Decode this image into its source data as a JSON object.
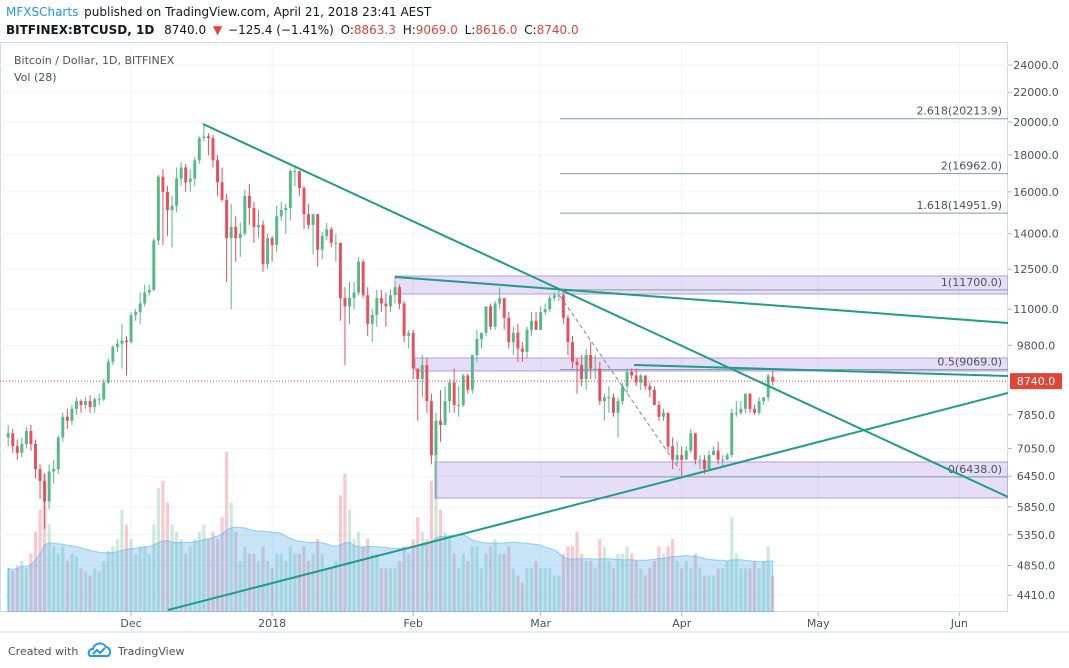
{
  "header": {
    "author": "MFXSCharts",
    "published": "published on TradingView.com, April 21, 2018 23:41 AEST",
    "symbol": "BITFINEX:BTCUSD, 1D",
    "last": "8740.0",
    "arrow": "▼",
    "change": "−125.4 (−1.41%)",
    "ohlc": [
      {
        "key": "O:",
        "value": "8863.3"
      },
      {
        "key": "H:",
        "value": "9069.0"
      },
      {
        "key": "L:",
        "value": "8616.0"
      },
      {
        "key": "C:",
        "value": "8740.0"
      }
    ]
  },
  "footer": {
    "created": "Created with",
    "brand": "TradingView"
  },
  "chart_data": {
    "type": "candlestick",
    "title": "Bitcoin / Dollar, 1D, BITFINEX",
    "volume_label": "Vol (28)",
    "volume_ma_period": 28,
    "log": true,
    "grid": true,
    "colors": {
      "up": "#53b987",
      "down": "#eb4d5c",
      "volume_ma": "#5fb3ea",
      "price_line": "#e0453a",
      "fib": "#7f9ea6"
    },
    "xlim": [
      -1.8,
      219.7
    ],
    "xticks": [
      {
        "value": 27,
        "label": "Dec"
      },
      {
        "value": 58,
        "label": "2018"
      },
      {
        "value": 89,
        "label": "Feb"
      },
      {
        "value": 117,
        "label": "Mar"
      },
      {
        "value": 148,
        "label": "Apr"
      },
      {
        "value": 178,
        "label": "May"
      },
      {
        "value": 209,
        "label": "Jun"
      }
    ],
    "ylim": [
      4180,
      25830
    ],
    "yticks": [
      {
        "value": 24000,
        "label": "24000.0"
      },
      {
        "value": 22000,
        "label": "22000.0"
      },
      {
        "value": 20000,
        "label": "20000.0"
      },
      {
        "value": 18000,
        "label": "18000.0"
      },
      {
        "value": 16000,
        "label": "16000.0"
      },
      {
        "value": 14000,
        "label": "14000.0"
      },
      {
        "value": 12500,
        "label": "12500.0"
      },
      {
        "value": 11000,
        "label": "11000.0"
      },
      {
        "value": 9800,
        "label": "9800.0"
      },
      {
        "value": 7850,
        "label": "7850.0"
      },
      {
        "value": 7050,
        "label": "7050.0"
      },
      {
        "value": 6450,
        "label": "6450.0"
      },
      {
        "value": 5850,
        "label": "5850.0"
      },
      {
        "value": 5350,
        "label": "5350.0"
      },
      {
        "value": 4850,
        "label": "4850.0"
      },
      {
        "value": 4410,
        "label": "4410.0"
      }
    ],
    "fib_levels": [
      {
        "value": 20213.9,
        "label": "2.618(20213.9)"
      },
      {
        "value": 16962,
        "label": "2(16962.0)"
      },
      {
        "value": 14951.9,
        "label": "1.618(14951.9)"
      },
      {
        "value": 11700,
        "label": "1(11700.0)"
      },
      {
        "value": 9069,
        "label": "0.5(9069.0)"
      },
      {
        "value": 6438,
        "label": "0(6438.0)"
      }
    ],
    "open": [
      7300,
      7400,
      7100,
      6950,
      7150,
      7450,
      7150,
      6600,
      6350,
      5950,
      6550,
      6600,
      7300,
      7800,
      7700,
      8000,
      8200,
      8100,
      8200,
      8050,
      8250,
      8250,
      8700,
      9300,
      9750,
      9850,
      9950,
      9900,
      10800,
      10900,
      11200,
      11600,
      11700,
      13700,
      16800,
      16000,
      15100,
      15300,
      16700,
      17300,
      16500,
      16700,
      17700,
      19000,
      19100,
      19000,
      17700,
      16500,
      15600,
      13800,
      14300,
      13800,
      14000,
      15800,
      15200,
      14300,
      14400,
      12700,
      13800,
      13500,
      14800,
      15100,
      15200,
      17100,
      17100,
      16200,
      14900,
      14400,
      14900,
      13300,
      13900,
      14200,
      13600,
      13600,
      11400,
      11100,
      11400,
      11600,
      12800,
      11500,
      10500,
      10800,
      11400,
      11200,
      11100,
      11500,
      11800,
      11200,
      10100,
      10200,
      9100,
      8800,
      9200,
      8200,
      6900,
      7700,
      7600,
      8200,
      8700,
      8100,
      8100,
      8900,
      8500,
      9500,
      10000,
      10200,
      11100,
      10400,
      11200,
      11400,
      10700,
      9900,
      10200,
      9700,
      9600,
      10300,
      10600,
      10300,
      10900,
      11000,
      11400,
      11500,
      11500,
      10700,
      9900,
      9300,
      9200,
      8800,
      9500,
      9100,
      9100,
      8200,
      8300,
      8300,
      7900,
      8200,
      8600,
      9000,
      8900,
      8700,
      8900,
      8600,
      8500,
      8100,
      7800,
      7900,
      7100,
      6800,
      6900,
      6800,
      7000,
      7400,
      6800,
      6800,
      6600,
      6900,
      7000,
      6800,
      6800,
      6900,
      7900,
      7900,
      8000,
      8400,
      8000,
      7900,
      8200,
      8300,
      8863.3
    ],
    "high": [
      7600,
      7500,
      7250,
      7300,
      7550,
      7600,
      7250,
      6700,
      6500,
      6700,
      6800,
      7350,
      7900,
      8000,
      8100,
      8300,
      8250,
      8300,
      8350,
      8300,
      8400,
      8800,
      9400,
      9800,
      10000,
      10500,
      10100,
      10900,
      11000,
      11600,
      11900,
      11900,
      13800,
      16900,
      17200,
      16300,
      15800,
      17300,
      17600,
      17500,
      17200,
      17900,
      19100,
      19800,
      19300,
      19200,
      18000,
      17300,
      15900,
      15400,
      14800,
      14500,
      16100,
      16400,
      15500,
      15100,
      14600,
      14000,
      13900,
      15300,
      15500,
      15400,
      17200,
      17300,
      17100,
      16300,
      15400,
      14900,
      14900,
      14100,
      14500,
      14300,
      14000,
      13600,
      11800,
      12000,
      12000,
      13000,
      12900,
      11800,
      11000,
      11700,
      11700,
      11600,
      11700,
      12000,
      11900,
      11300,
      10300,
      10300,
      9100,
      9500,
      9400,
      8400,
      7900,
      8500,
      8600,
      8800,
      9100,
      8600,
      8950,
      8950,
      9500,
      10300,
      10200,
      11100,
      11200,
      11300,
      11800,
      11400,
      10900,
      10400,
      10500,
      9900,
      10400,
      10900,
      10900,
      11100,
      11200,
      11500,
      11600,
      11700,
      11600,
      10800,
      10100,
      9400,
      9500,
      9700,
      9900,
      9500,
      9300,
      8400,
      8600,
      8400,
      8300,
      8700,
      9100,
      9100,
      9100,
      8950,
      8900,
      8700,
      8600,
      8200,
      8000,
      7900,
      7300,
      7200,
      7100,
      7100,
      7500,
      7400,
      6900,
      6900,
      7000,
      7100,
      7200,
      6900,
      6950,
      8000,
      8200,
      8200,
      8400,
      8400,
      8100,
      8300,
      8300,
      8950,
      9069
    ],
    "low": [
      7100,
      6950,
      6800,
      6850,
      7050,
      7000,
      6400,
      6000,
      5450,
      5800,
      6300,
      6500,
      7200,
      7500,
      7600,
      7850,
      7900,
      8000,
      7900,
      7900,
      8100,
      8200,
      8650,
      9200,
      9600,
      9100,
      8900,
      9850,
      10600,
      10500,
      11100,
      11500,
      11650,
      13500,
      13500,
      13900,
      13400,
      15000,
      16300,
      16000,
      16000,
      16300,
      17500,
      18800,
      18000,
      17300,
      15800,
      15500,
      12000,
      11000,
      12800,
      13000,
      13900,
      14400,
      13600,
      13800,
      12400,
      12500,
      12800,
      13200,
      14600,
      14000,
      14600,
      16300,
      15800,
      14200,
      14200,
      13100,
      12600,
      12900,
      13700,
      13400,
      12800,
      10600,
      9200,
      10500,
      11000,
      11500,
      11400,
      10100,
      9900,
      10400,
      10900,
      10400,
      10900,
      11200,
      11000,
      9900,
      9700,
      8800,
      7700,
      8300,
      7900,
      6700,
      6000,
      7200,
      7600,
      7900,
      7900,
      7800,
      8050,
      8400,
      8400,
      9300,
      9700,
      10100,
      10300,
      10300,
      11000,
      10300,
      9700,
      9500,
      9300,
      9300,
      9400,
      10100,
      10300,
      10300,
      10800,
      10900,
      11300,
      11300,
      10500,
      9500,
      9100,
      8400,
      8600,
      8500,
      8800,
      8800,
      8100,
      7700,
      7900,
      7800,
      7300,
      8100,
      8400,
      8800,
      8600,
      8500,
      8500,
      8300,
      8100,
      7700,
      7700,
      7000,
      6600,
      6700,
      6450,
      6800,
      6950,
      6700,
      6600,
      6500,
      6600,
      6900,
      6700,
      6650,
      6800,
      6850,
      7800,
      7850,
      7900,
      7900,
      7850,
      7850,
      8100,
      8200,
      8616
    ],
    "close": [
      7400,
      7100,
      6950,
      7150,
      7450,
      7150,
      6600,
      6350,
      5950,
      6550,
      6600,
      7300,
      7800,
      7700,
      8000,
      8200,
      8100,
      8200,
      8050,
      8250,
      8250,
      8700,
      9300,
      9750,
      9850,
      9950,
      9900,
      10800,
      10900,
      11200,
      11600,
      11700,
      13700,
      16800,
      16000,
      15100,
      15300,
      16700,
      17300,
      16500,
      16700,
      17700,
      19000,
      19100,
      19000,
      17700,
      16500,
      15600,
      13800,
      14300,
      13800,
      14000,
      15800,
      15200,
      14300,
      14400,
      12700,
      13800,
      13500,
      14800,
      15100,
      15200,
      17100,
      17100,
      16200,
      14900,
      14400,
      14900,
      13300,
      13900,
      14200,
      13600,
      13600,
      11400,
      11100,
      11400,
      11600,
      12800,
      11500,
      10500,
      10800,
      11400,
      11200,
      11100,
      11500,
      11800,
      11200,
      10100,
      10200,
      9100,
      8800,
      9200,
      8200,
      6900,
      7700,
      7600,
      8200,
      8700,
      8100,
      8100,
      8900,
      8500,
      9500,
      10000,
      10200,
      11100,
      10400,
      11200,
      11400,
      10700,
      9900,
      10200,
      9700,
      9600,
      10300,
      10600,
      10300,
      10900,
      11000,
      11400,
      11500,
      11500,
      10700,
      9900,
      9300,
      9200,
      8800,
      9500,
      9100,
      9100,
      8200,
      8300,
      8300,
      7900,
      8200,
      8600,
      9000,
      8900,
      8700,
      8900,
      8600,
      8500,
      8100,
      7800,
      7900,
      7100,
      6800,
      6900,
      6800,
      7000,
      7400,
      6800,
      6800,
      6600,
      6900,
      7000,
      6800,
      6800,
      6900,
      7900,
      7900,
      8000,
      8400,
      8000,
      7900,
      8200,
      8300,
      8900,
      8740
    ],
    "volume": [
      30,
      28,
      32,
      35,
      30,
      40,
      55,
      70,
      95,
      60,
      45,
      40,
      45,
      35,
      40,
      38,
      30,
      28,
      25,
      30,
      28,
      35,
      42,
      45,
      50,
      70,
      60,
      50,
      40,
      45,
      45,
      40,
      60,
      85,
      90,
      75,
      60,
      55,
      50,
      40,
      45,
      50,
      55,
      60,
      50,
      55,
      50,
      65,
      110,
      75,
      55,
      35,
      45,
      40,
      40,
      35,
      45,
      35,
      30,
      40,
      40,
      35,
      45,
      40,
      40,
      45,
      35,
      40,
      50,
      40,
      30,
      30,
      35,
      80,
      95,
      70,
      50,
      55,
      45,
      50,
      40,
      40,
      30,
      30,
      30,
      30,
      35,
      45,
      40,
      50,
      65,
      55,
      50,
      90,
      120,
      70,
      55,
      50,
      40,
      30,
      40,
      35,
      45,
      45,
      30,
      40,
      45,
      50,
      40,
      40,
      45,
      30,
      25,
      20,
      30,
      30,
      35,
      30,
      30,
      30,
      25,
      25,
      40,
      45,
      45,
      55,
      40,
      35,
      35,
      30,
      50,
      45,
      35,
      30,
      40,
      40,
      45,
      40,
      35,
      30,
      25,
      30,
      35,
      45,
      40,
      45,
      50,
      35,
      30,
      35,
      30,
      40,
      30,
      25,
      25,
      25,
      30,
      30,
      35,
      65,
      40,
      30,
      30,
      30,
      35,
      30,
      35,
      45,
      25
    ]
  }
}
